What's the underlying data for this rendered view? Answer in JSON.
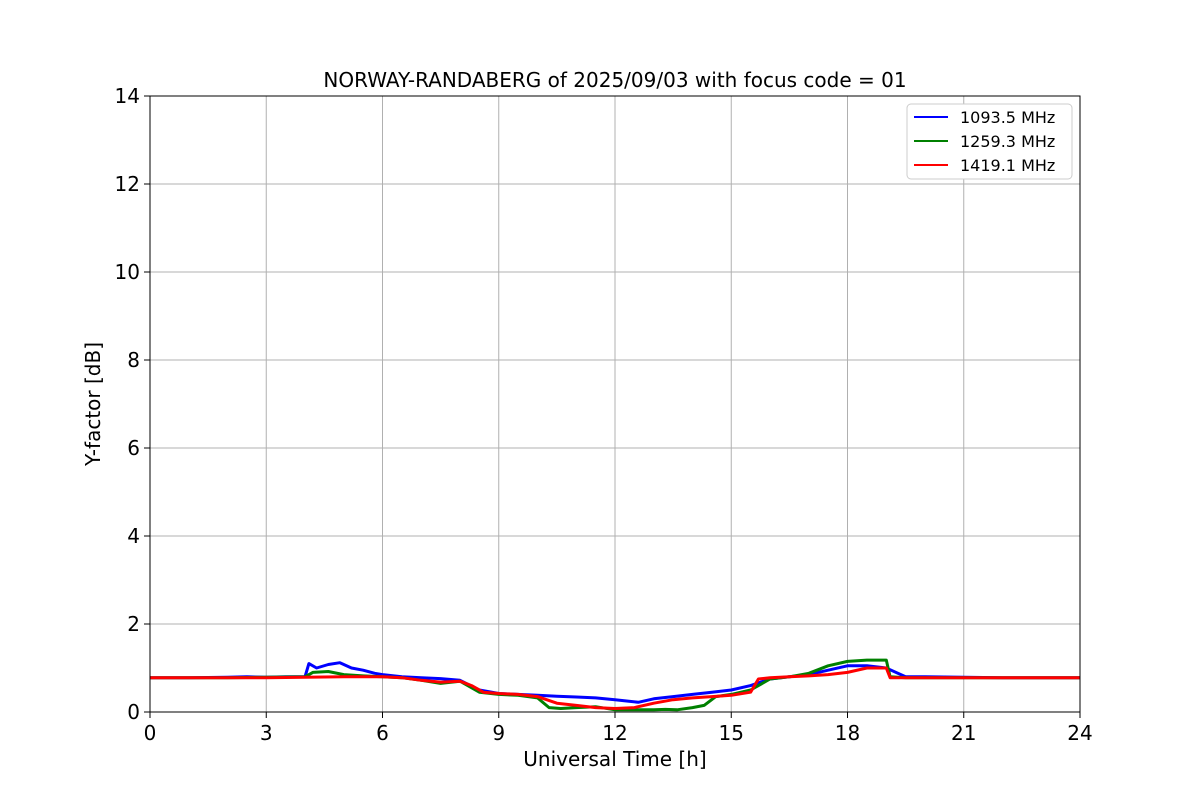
{
  "chart_data": {
    "type": "line",
    "title": "NORWAY-RANDABERG of 2025/09/03 with focus code = 01",
    "xlabel": "Universal Time [h]",
    "ylabel": "Y-factor [dB]",
    "xlim": [
      0,
      24
    ],
    "ylim": [
      0,
      14
    ],
    "xticks": [
      0,
      3,
      6,
      9,
      12,
      15,
      18,
      21,
      24
    ],
    "yticks": [
      0,
      2,
      4,
      6,
      8,
      10,
      12,
      14
    ],
    "grid": true,
    "legend_position": "top-right",
    "series": [
      {
        "name": "1093.5 MHz",
        "color": "#0000ff",
        "x": [
          0,
          1,
          2,
          2.5,
          3,
          3.5,
          4.0,
          4.1,
          4.3,
          4.6,
          4.9,
          5.2,
          5.5,
          5.8,
          6.0,
          6.5,
          7.0,
          7.5,
          8.0,
          8.5,
          9.0,
          9.5,
          10.0,
          10.5,
          11.0,
          11.5,
          12.0,
          12.3,
          12.6,
          13.0,
          13.5,
          14.0,
          14.5,
          15.0,
          15.5,
          16.0,
          16.5,
          17.0,
          17.5,
          18.0,
          18.5,
          19.0,
          19.5,
          20.0,
          21.0,
          22.0,
          23.0,
          24.0
        ],
        "values": [
          0.78,
          0.78,
          0.79,
          0.8,
          0.79,
          0.8,
          0.8,
          1.1,
          1.0,
          1.08,
          1.12,
          1.0,
          0.95,
          0.88,
          0.85,
          0.8,
          0.78,
          0.76,
          0.72,
          0.5,
          0.42,
          0.4,
          0.38,
          0.36,
          0.34,
          0.32,
          0.28,
          0.25,
          0.22,
          0.3,
          0.35,
          0.4,
          0.45,
          0.5,
          0.6,
          0.75,
          0.8,
          0.85,
          0.95,
          1.05,
          1.05,
          1.0,
          0.8,
          0.8,
          0.79,
          0.78,
          0.78,
          0.78
        ]
      },
      {
        "name": "1259.3 MHz",
        "color": "#008000",
        "x": [
          0,
          1,
          2,
          3,
          4.0,
          4.2,
          4.6,
          5.0,
          5.5,
          6.0,
          6.5,
          7.0,
          7.5,
          8.0,
          8.5,
          9.0,
          9.5,
          10.0,
          10.3,
          10.6,
          11.0,
          11.5,
          12.0,
          12.5,
          13.0,
          13.3,
          13.6,
          14.0,
          14.3,
          14.6,
          15.0,
          15.5,
          16.0,
          16.5,
          17.0,
          17.5,
          18.0,
          18.5,
          19.0,
          19.1,
          19.5,
          20.0,
          21.0,
          22.0,
          23.0,
          24.0
        ],
        "values": [
          0.78,
          0.78,
          0.78,
          0.79,
          0.8,
          0.9,
          0.92,
          0.85,
          0.82,
          0.8,
          0.78,
          0.72,
          0.65,
          0.7,
          0.45,
          0.4,
          0.38,
          0.32,
          0.1,
          0.08,
          0.1,
          0.12,
          0.05,
          0.05,
          0.05,
          0.06,
          0.05,
          0.1,
          0.15,
          0.35,
          0.4,
          0.5,
          0.75,
          0.8,
          0.88,
          1.05,
          1.15,
          1.18,
          1.18,
          0.8,
          0.78,
          0.78,
          0.78,
          0.78,
          0.78,
          0.78
        ]
      },
      {
        "name": "1419.1 MHz",
        "color": "#ff0000",
        "x": [
          0,
          1,
          2,
          3,
          4,
          5,
          6,
          6.5,
          7.0,
          7.5,
          8.0,
          8.3,
          8.6,
          9.0,
          9.5,
          10.0,
          10.5,
          11.0,
          11.5,
          12.0,
          12.5,
          13.0,
          13.5,
          14.0,
          14.5,
          15.0,
          15.5,
          15.7,
          16.0,
          16.5,
          17.0,
          17.5,
          18.0,
          18.5,
          19.0,
          19.1,
          19.5,
          20.0,
          21.0,
          22.0,
          23.0,
          24.0
        ],
        "values": [
          0.78,
          0.78,
          0.78,
          0.78,
          0.79,
          0.8,
          0.8,
          0.78,
          0.72,
          0.68,
          0.7,
          0.6,
          0.45,
          0.42,
          0.4,
          0.35,
          0.2,
          0.15,
          0.1,
          0.08,
          0.1,
          0.2,
          0.28,
          0.32,
          0.35,
          0.38,
          0.45,
          0.75,
          0.78,
          0.8,
          0.82,
          0.85,
          0.9,
          1.0,
          1.0,
          0.78,
          0.78,
          0.78,
          0.78,
          0.78,
          0.78,
          0.78
        ]
      }
    ]
  }
}
